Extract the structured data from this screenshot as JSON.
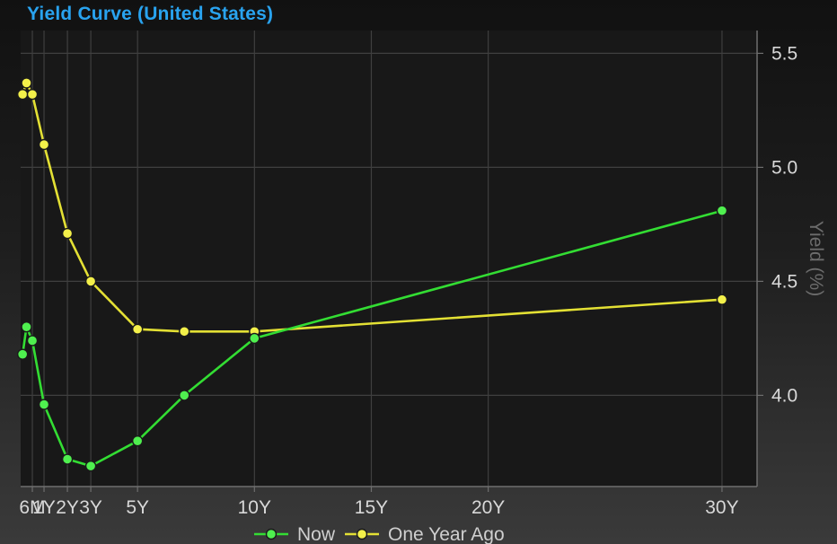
{
  "chart_data": {
    "type": "line",
    "title": "Yield Curve (United States)",
    "xlabel": "",
    "ylabel": "Yield (%)",
    "x_unit": "years to maturity",
    "xlim": [
      0,
      31.5
    ],
    "ylim": [
      3.6,
      5.6
    ],
    "x_ticks": [
      {
        "value": 0.5,
        "label": "6M"
      },
      {
        "value": 1,
        "label": "1Y"
      },
      {
        "value": 2,
        "label": "2Y"
      },
      {
        "value": 3,
        "label": "3Y"
      },
      {
        "value": 5,
        "label": "5Y"
      },
      {
        "value": 10,
        "label": "10Y"
      },
      {
        "value": 15,
        "label": "15Y"
      },
      {
        "value": 20,
        "label": "20Y"
      },
      {
        "value": 30,
        "label": "30Y"
      }
    ],
    "y_ticks": [
      {
        "value": 4.0,
        "label": "4.0"
      },
      {
        "value": 4.5,
        "label": "4.5"
      },
      {
        "value": 5.0,
        "label": "5.0"
      },
      {
        "value": 5.5,
        "label": "5.5"
      }
    ],
    "grid": true,
    "y_axis_position": "right",
    "legend_position": "bottom",
    "series": [
      {
        "name": "Now",
        "color": "#33dd33",
        "marker_color": "#4ff04f",
        "x": [
          0.083,
          0.25,
          0.5,
          1,
          2,
          3,
          5,
          7,
          10,
          30
        ],
        "y": [
          4.18,
          4.3,
          4.24,
          3.96,
          3.72,
          3.69,
          3.8,
          4.0,
          4.25,
          4.81
        ]
      },
      {
        "name": "One Year Ago",
        "color": "#e3e034",
        "marker_color": "#f3f04a",
        "x": [
          0.083,
          0.25,
          0.5,
          1,
          2,
          3,
          5,
          7,
          10,
          30
        ],
        "y": [
          5.32,
          5.37,
          5.32,
          5.1,
          4.71,
          4.5,
          4.29,
          4.28,
          4.28,
          4.42
        ]
      }
    ]
  }
}
